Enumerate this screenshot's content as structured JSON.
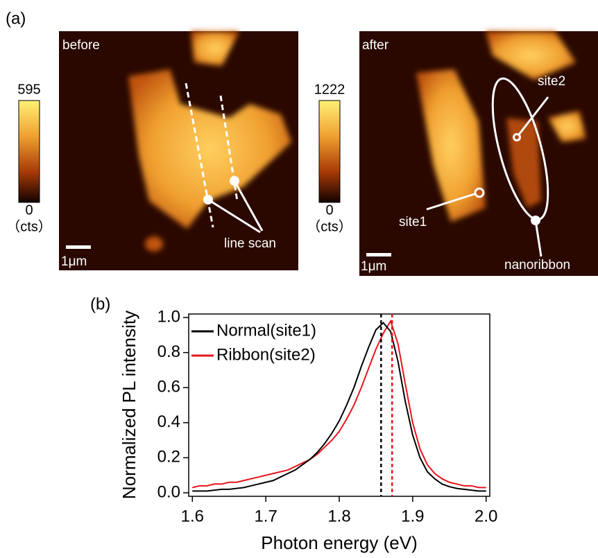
{
  "panel_a": {
    "label": "(a)",
    "maps": [
      {
        "label": "before",
        "scale_bar": "1μm",
        "colorbar": {
          "max": 595,
          "min": 0,
          "unit": "（cts）"
        },
        "annotations": [
          "line scan"
        ]
      },
      {
        "label": "after",
        "scale_bar": "1μm",
        "colorbar": {
          "max": 1222,
          "min": 0,
          "unit": "（cts）"
        },
        "annotations": [
          "site1",
          "site2",
          "nanoribbon"
        ]
      }
    ]
  },
  "chart_data": {
    "type": "line",
    "panel_label": "(b)",
    "x_label": "Photon energy (eV)",
    "y_label": "Normalized PL intensity",
    "x": [
      1.6,
      1.61,
      1.62,
      1.63,
      1.64,
      1.65,
      1.66,
      1.67,
      1.68,
      1.69,
      1.7,
      1.71,
      1.72,
      1.73,
      1.74,
      1.75,
      1.76,
      1.77,
      1.78,
      1.79,
      1.8,
      1.81,
      1.82,
      1.83,
      1.84,
      1.85,
      1.86,
      1.87,
      1.88,
      1.89,
      1.9,
      1.91,
      1.92,
      1.93,
      1.94,
      1.95,
      1.96,
      1.97,
      1.98,
      1.99,
      2.0
    ],
    "series": [
      {
        "name": "Normal(site1)",
        "color": "#000000",
        "values": [
          0.01,
          0.01,
          0.01,
          0.015,
          0.02,
          0.02,
          0.025,
          0.03,
          0.04,
          0.05,
          0.06,
          0.07,
          0.09,
          0.11,
          0.13,
          0.16,
          0.19,
          0.23,
          0.28,
          0.34,
          0.41,
          0.5,
          0.6,
          0.72,
          0.83,
          0.93,
          0.97,
          0.92,
          0.75,
          0.52,
          0.33,
          0.2,
          0.12,
          0.08,
          0.05,
          0.035,
          0.025,
          0.02,
          0.015,
          0.01,
          0.01
        ]
      },
      {
        "name": "Ribbon(site2)",
        "color": "#e8141b",
        "values": [
          0.03,
          0.04,
          0.04,
          0.05,
          0.05,
          0.06,
          0.06,
          0.07,
          0.08,
          0.09,
          0.1,
          0.11,
          0.12,
          0.13,
          0.15,
          0.17,
          0.19,
          0.22,
          0.26,
          0.3,
          0.35,
          0.42,
          0.5,
          0.6,
          0.71,
          0.82,
          0.91,
          0.98,
          0.85,
          0.62,
          0.4,
          0.25,
          0.16,
          0.11,
          0.08,
          0.06,
          0.05,
          0.04,
          0.04,
          0.03,
          0.03
        ]
      }
    ],
    "vlines": [
      {
        "value": 1.857,
        "color": "#000000"
      },
      {
        "value": 1.872,
        "color": "#e8141b"
      }
    ],
    "xlim": [
      1.595,
      2.005
    ],
    "ylim": [
      -0.02,
      1.02
    ],
    "xticks": [
      1.6,
      1.7,
      1.8,
      1.9,
      {
        "value": 2,
        "label": "2.0"
      }
    ],
    "yticks": [
      {
        "value": 0,
        "label": "0.0"
      },
      0.2,
      0.4,
      0.6,
      0.8,
      {
        "value": 1,
        "label": "1.0"
      }
    ],
    "legend": "upper left"
  }
}
